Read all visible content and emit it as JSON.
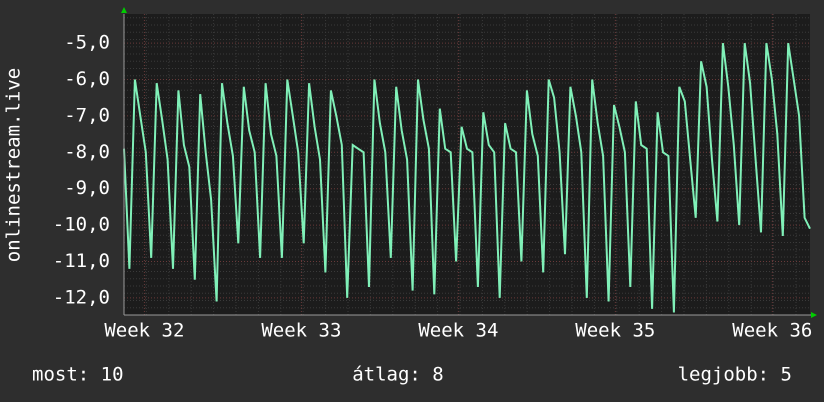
{
  "chart_data": {
    "type": "line",
    "y_label": "onlinestream.live",
    "xlim": [
      31.87,
      36.24
    ],
    "xticks": [
      {
        "value": 32,
        "label": "Week 32"
      },
      {
        "value": 33,
        "label": "Week 33"
      },
      {
        "value": 34,
        "label": "Week 34"
      },
      {
        "value": 35,
        "label": "Week 35"
      },
      {
        "value": 36,
        "label": "Week 36"
      }
    ],
    "ylim": [
      -12.47,
      -4.2
    ],
    "yticks": [
      {
        "value": -12,
        "label": "-12,0"
      },
      {
        "value": -11,
        "label": "-11,0"
      },
      {
        "value": -10,
        "label": "-10,0"
      },
      {
        "value": -9,
        "label": "-9,0"
      },
      {
        "value": -8,
        "label": "-8,0"
      },
      {
        "value": -7,
        "label": "-7,0"
      },
      {
        "value": -6,
        "label": "-6,0"
      },
      {
        "value": -5,
        "label": "-5,0"
      }
    ],
    "grid": true,
    "series": [
      {
        "color": "#80f0b8",
        "values": [
          -7.9,
          -11.2,
          -6.0,
          -7.0,
          -8.0,
          -10.9,
          -6.1,
          -7.1,
          -8.2,
          -11.2,
          -6.3,
          -7.8,
          -8.4,
          -11.5,
          -6.4,
          -8.0,
          -9.3,
          -12.1,
          -6.1,
          -7.2,
          -8.1,
          -10.5,
          -6.2,
          -7.4,
          -8.0,
          -10.9,
          -6.1,
          -7.5,
          -8.1,
          -10.9,
          -6.0,
          -7.0,
          -8.0,
          -10.5,
          -6.1,
          -7.3,
          -8.2,
          -11.3,
          -6.3,
          -7.0,
          -7.8,
          -12.0,
          -7.8,
          -7.9,
          -8.0,
          -11.7,
          -6.0,
          -7.2,
          -8.0,
          -10.9,
          -6.2,
          -7.4,
          -8.2,
          -11.8,
          -6.0,
          -7.1,
          -7.9,
          -11.9,
          -6.8,
          -7.9,
          -8.0,
          -11.0,
          -7.3,
          -7.9,
          -8.0,
          -11.7,
          -6.9,
          -7.8,
          -8.0,
          -12.0,
          -7.2,
          -7.9,
          -8.0,
          -11.0,
          -6.3,
          -7.5,
          -8.1,
          -11.3,
          -6.0,
          -6.5,
          -8.0,
          -10.8,
          -6.2,
          -7.0,
          -8.0,
          -12.0,
          -6.0,
          -7.2,
          -8.1,
          -12.1,
          -6.7,
          -7.3,
          -8.0,
          -11.7,
          -6.6,
          -7.8,
          -7.9,
          -12.3,
          -6.9,
          -8.0,
          -8.1,
          -12.4,
          -6.2,
          -6.6,
          -8.2,
          -9.8,
          -5.5,
          -6.2,
          -8.2,
          -9.9,
          -5.0,
          -6.2,
          -7.8,
          -10.0,
          -5.0,
          -6.1,
          -8.2,
          -10.2,
          -5.0,
          -6.0,
          -7.5,
          -10.3,
          -5.0,
          -6.0,
          -7.0,
          -9.8,
          -10.1
        ]
      }
    ]
  },
  "footer": [
    "most: 10",
    "átlag: 8",
    "legjobb: 5"
  ]
}
